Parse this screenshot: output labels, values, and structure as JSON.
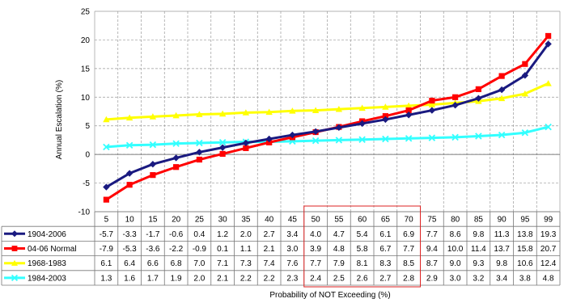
{
  "chart_data": {
    "type": "line",
    "title": "",
    "xlabel": "Probability of NOT Exceeding (%)",
    "ylabel": "Annual Escalation (%)",
    "ylim": [
      -10,
      25
    ],
    "yticks": [
      -10,
      -5,
      0,
      5,
      10,
      15,
      20,
      25
    ],
    "grid": "dashed",
    "legend": "data table",
    "categories": [
      "5",
      "10",
      "15",
      "20",
      "25",
      "30",
      "35",
      "40",
      "45",
      "50",
      "55",
      "60",
      "65",
      "70",
      "75",
      "80",
      "85",
      "90",
      "95",
      "99"
    ],
    "highlight": {
      "from": "50",
      "to": "70",
      "color": "#d22"
    },
    "series": [
      {
        "name": "1904-2006",
        "color": "#1a1a80",
        "marker": "diamond",
        "values": [
          -5.7,
          -3.3,
          -1.7,
          -0.6,
          0.4,
          1.2,
          2.0,
          2.7,
          3.4,
          4.0,
          4.7,
          5.4,
          6.1,
          6.9,
          7.7,
          8.6,
          9.8,
          11.3,
          13.8,
          19.3
        ],
        "labels": [
          "-5.7",
          "-3.3",
          "-1.7",
          "-0.6",
          "0.4",
          "1.2",
          "2.0",
          "2.7",
          "3.4",
          "4.0",
          "4.7",
          "5.4",
          "6.1",
          "6.9",
          "7.7",
          "8.6",
          "9.8",
          "11.3",
          "13.8",
          "19.3"
        ]
      },
      {
        "name": "04-06 Normal",
        "color": "#ff0000",
        "marker": "square",
        "values": [
          -7.9,
          -5.3,
          -3.6,
          -2.2,
          -0.9,
          0.1,
          1.1,
          2.1,
          3.0,
          3.9,
          4.8,
          5.8,
          6.7,
          7.7,
          9.4,
          10.0,
          11.4,
          13.7,
          15.8,
          20.7
        ],
        "labels": [
          "-7.9",
          "-5.3",
          "-3.6",
          "-2.2",
          "-0.9",
          "0.1",
          "1.1",
          "2.1",
          "3.0",
          "3.9",
          "4.8",
          "5.8",
          "6.7",
          "7.7",
          "9.4",
          "10.0",
          "11.4",
          "13.7",
          "15.8",
          "20.7"
        ]
      },
      {
        "name": "1968-1983",
        "color": "#ffff00",
        "marker": "triangle",
        "values": [
          6.1,
          6.4,
          6.6,
          6.8,
          7.0,
          7.1,
          7.3,
          7.4,
          7.6,
          7.7,
          7.9,
          8.1,
          8.3,
          8.5,
          8.7,
          9.0,
          9.3,
          9.8,
          10.6,
          12.4
        ],
        "labels": [
          "6.1",
          "6.4",
          "6.6",
          "6.8",
          "7.0",
          "7.1",
          "7.3",
          "7.4",
          "7.6",
          "7.7",
          "7.9",
          "8.1",
          "8.3",
          "8.5",
          "8.7",
          "9.0",
          "9.3",
          "9.8",
          "10.6",
          "12.4"
        ]
      },
      {
        "name": "1984-2003",
        "color": "#33ffff",
        "marker": "x",
        "values": [
          1.3,
          1.6,
          1.7,
          1.9,
          2.0,
          2.1,
          2.2,
          2.2,
          2.3,
          2.4,
          2.5,
          2.6,
          2.7,
          2.8,
          2.9,
          3.0,
          3.2,
          3.4,
          3.8,
          4.8
        ],
        "labels": [
          "1.3",
          "1.6",
          "1.7",
          "1.9",
          "2.0",
          "2.1",
          "2.2",
          "2.2",
          "2.3",
          "2.4",
          "2.5",
          "2.6",
          "2.7",
          "2.8",
          "2.9",
          "3.0",
          "3.2",
          "3.4",
          "3.8",
          "4.8"
        ]
      }
    ]
  }
}
